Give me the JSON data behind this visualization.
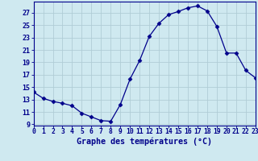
{
  "x": [
    0,
    1,
    2,
    3,
    4,
    5,
    6,
    7,
    8,
    9,
    10,
    11,
    12,
    13,
    14,
    15,
    16,
    17,
    18,
    19,
    20,
    21,
    22,
    23
  ],
  "y": [
    14.2,
    13.2,
    12.7,
    12.4,
    12.0,
    10.8,
    10.2,
    9.6,
    9.5,
    12.2,
    16.3,
    19.3,
    23.2,
    25.3,
    26.7,
    27.2,
    27.8,
    28.1,
    27.3,
    24.8,
    20.5,
    20.5,
    17.7,
    16.5
  ],
  "line_color": "#00008b",
  "marker": "D",
  "marker_size": 2.5,
  "bg_color": "#cfe9f0",
  "grid_color": "#b0cdd6",
  "xlabel": "Graphe des températures (°C)",
  "xlabel_color": "#00008b",
  "ylabel_ticks": [
    9,
    11,
    13,
    15,
    17,
    19,
    21,
    23,
    25,
    27
  ],
  "xlim": [
    0,
    23
  ],
  "ylim": [
    8.8,
    28.8
  ],
  "tick_color": "#00008b",
  "spine_color": "#00008b",
  "tick_fontsize": 5.8,
  "ylabel_fontsize": 6.0,
  "xlabel_fontsize": 7.2
}
